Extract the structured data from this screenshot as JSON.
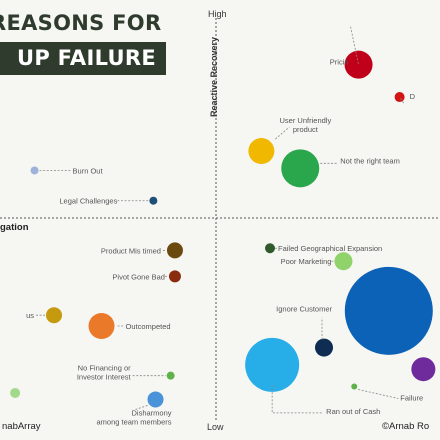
{
  "title": {
    "line1": "REASONS FOR",
    "line2": "UP FAILURE"
  },
  "axes": {
    "y_top": "High",
    "y_bottom": "Low",
    "y_label": "Reactive Recovery",
    "x_left_label": "gation"
  },
  "footer": {
    "left": "nabArray",
    "right": "©Arnab Ro"
  },
  "colors": {
    "background": "#f6f6f3",
    "title_box": "#2f3b2d",
    "axis": "#555555"
  },
  "chart_data": {
    "type": "scatter",
    "title": "REASONS FOR UP FAILURE",
    "xlabel": "",
    "ylabel": "Reactive Recovery",
    "xlim": [
      -1,
      1
    ],
    "ylim": [
      -1,
      1
    ],
    "grid": false,
    "points": [
      {
        "label": "Pricin",
        "x": 0.66,
        "y": 0.71,
        "size": 0.14,
        "color": "#c0001a"
      },
      {
        "label": "D",
        "x": 0.85,
        "y": 0.56,
        "size": 0.05,
        "color": "#d21414"
      },
      {
        "label": "User Unfriendly product",
        "x": 0.21,
        "y": 0.31,
        "size": 0.13,
        "color": "#f0b800"
      },
      {
        "label": "Not the right team",
        "x": 0.39,
        "y": 0.23,
        "size": 0.19,
        "color": "#2aa64c"
      },
      {
        "label": "Burn Out",
        "x": -0.84,
        "y": 0.22,
        "size": 0.04,
        "color": "#9db3d9"
      },
      {
        "label": "Legal Challenges",
        "x": -0.29,
        "y": 0.08,
        "size": 0.04,
        "color": "#1f4e79"
      },
      {
        "label": "Product Mis timed",
        "x": -0.19,
        "y": -0.15,
        "size": 0.08,
        "color": "#6b4a10"
      },
      {
        "label": "Failed Geographical Expansion",
        "x": 0.25,
        "y": -0.14,
        "size": 0.05,
        "color": "#2f5a2c"
      },
      {
        "label": "Poor Marketing",
        "x": 0.59,
        "y": -0.2,
        "size": 0.09,
        "color": "#8fd36a"
      },
      {
        "label": "Pivot Gone Bad",
        "x": -0.19,
        "y": -0.27,
        "size": 0.06,
        "color": "#8a2c0e"
      },
      {
        "label": "",
        "x": 0.8,
        "y": -0.43,
        "size": 0.44,
        "color": "#0c62b7"
      },
      {
        "label": "us",
        "x": -0.75,
        "y": -0.45,
        "size": 0.08,
        "color": "#c59a0f"
      },
      {
        "label": "Outcompeted",
        "x": -0.53,
        "y": -0.5,
        "size": 0.13,
        "color": "#ea7a2a"
      },
      {
        "label": "Ignore Customer",
        "x": 0.5,
        "y": -0.6,
        "size": 0.09,
        "color": "#0f2d52"
      },
      {
        "label": "",
        "x": 0.26,
        "y": -0.68,
        "size": 0.27,
        "color": "#27aee8"
      },
      {
        "label": "",
        "x": 0.96,
        "y": -0.7,
        "size": 0.12,
        "color": "#6f2a9c"
      },
      {
        "label": "No Financing or Investor Interest",
        "x": -0.21,
        "y": -0.73,
        "size": 0.04,
        "color": "#5fb14a"
      },
      {
        "label": "",
        "x": -0.93,
        "y": -0.81,
        "size": 0.05,
        "color": "#a3d98a"
      },
      {
        "label": "Failure",
        "x": 0.64,
        "y": -0.78,
        "size": 0.03,
        "color": "#5fb14a"
      },
      {
        "label": "Disharmony among team members",
        "x": -0.28,
        "y": -0.84,
        "size": 0.08,
        "color": "#4a93d9"
      },
      {
        "label": "Ran out of Cash",
        "x": 0.26,
        "y": -0.93,
        "size": 0,
        "color": "#555555"
      }
    ]
  }
}
